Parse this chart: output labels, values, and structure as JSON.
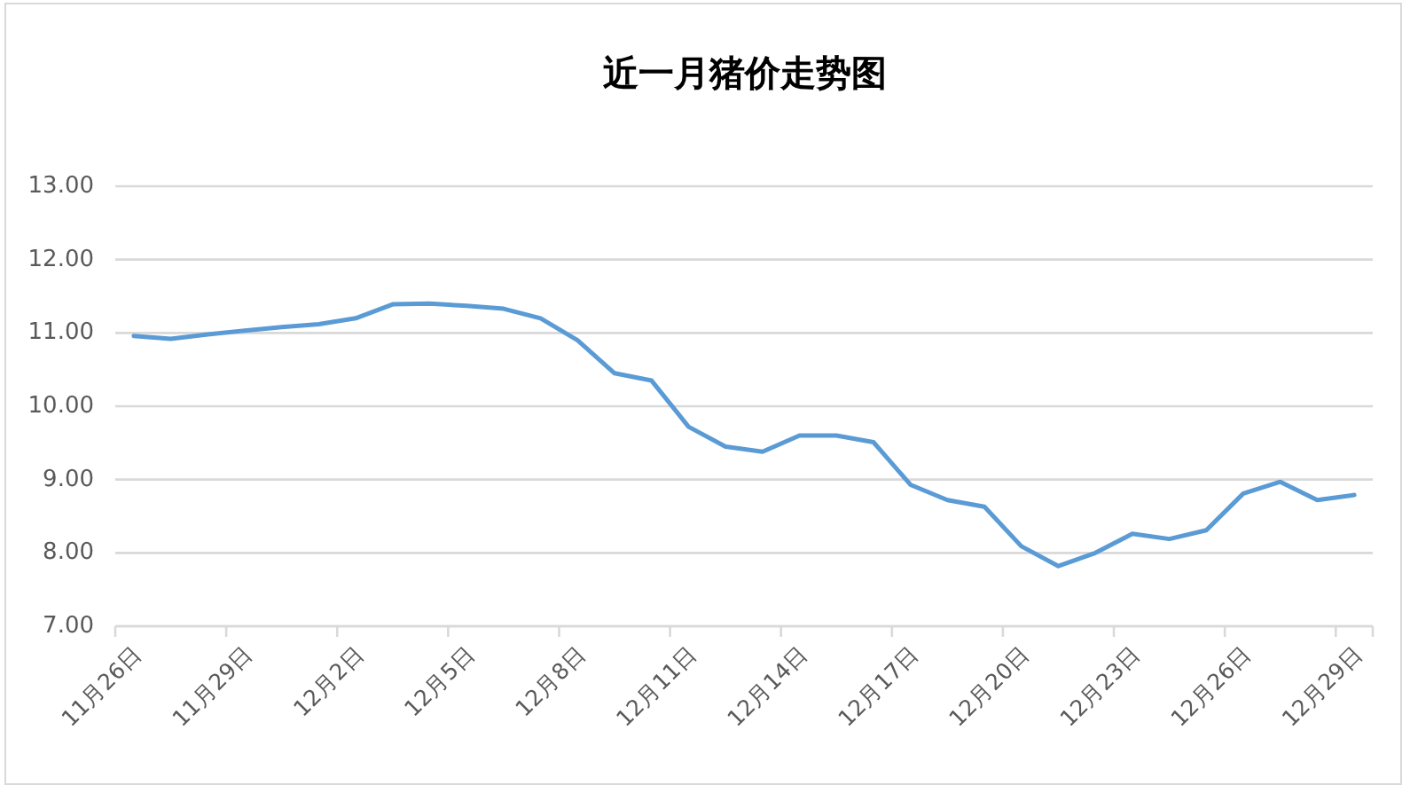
{
  "chart_data": {
    "type": "line",
    "title": "近一月猪价走势图",
    "categories": [
      "11月26日",
      null,
      null,
      "11月29日",
      null,
      null,
      "12月2日",
      null,
      null,
      "12月5日",
      null,
      null,
      "12月8日",
      null,
      null,
      "12月11日",
      null,
      null,
      "12月14日",
      null,
      null,
      "12月17日",
      null,
      null,
      "12月20日",
      null,
      null,
      "12月23日",
      null,
      null,
      "12月26日",
      null,
      null,
      "12月29日"
    ],
    "values": [
      10.96,
      10.92,
      10.98,
      11.03,
      11.08,
      11.12,
      11.2,
      11.39,
      11.4,
      11.37,
      11.33,
      11.2,
      10.9,
      10.45,
      10.35,
      9.72,
      9.45,
      9.38,
      9.6,
      9.6,
      9.51,
      8.93,
      8.72,
      8.63,
      8.09,
      7.82,
      8.0,
      8.26,
      8.19,
      8.31,
      8.81,
      8.97,
      8.72,
      8.79
    ],
    "color": "#5b9bd5",
    "ylim": [
      7,
      13
    ],
    "yticks": [
      {
        "value": 7,
        "label": "7.00"
      },
      {
        "value": 8,
        "label": "8.00"
      },
      {
        "value": 9,
        "label": "9.00"
      },
      {
        "value": 10,
        "label": "10.00"
      },
      {
        "value": 11,
        "label": "11.00"
      },
      {
        "value": 12,
        "label": "12.00"
      },
      {
        "value": 13,
        "label": "13.00"
      }
    ],
    "grid": "y"
  }
}
